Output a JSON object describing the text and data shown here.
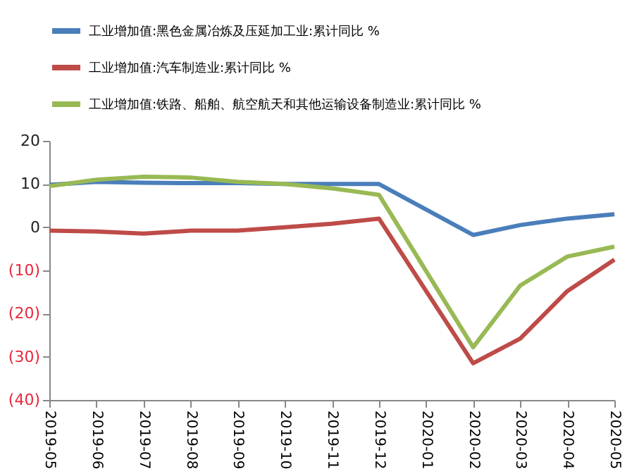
{
  "chart_data": {
    "type": "line",
    "categories": [
      "2019-05",
      "2019-06",
      "2019-07",
      "2019-08",
      "2019-09",
      "2019-10",
      "2019-11",
      "2019-12",
      "2020-01",
      "2020-02",
      "2020-03",
      "2020-04",
      "2020-05"
    ],
    "series": [
      {
        "name": "工业增加值:黑色金属冶炼及压延加工业:累计同比 %",
        "color": "#4a7ebb",
        "values": [
          9.8,
          10.5,
          10.3,
          10.2,
          10.2,
          10.0,
          10.0,
          10.0,
          null,
          -1.8,
          0.5,
          2.0,
          3.0
        ]
      },
      {
        "name": "工业增加值:汽车制造业:累计同比 %",
        "color": "#be4b48",
        "values": [
          -0.8,
          -1.0,
          -1.5,
          -0.8,
          -0.8,
          0.0,
          0.8,
          2.0,
          null,
          -31.5,
          -25.8,
          -14.8,
          -7.5
        ]
      },
      {
        "name": "工业增加值:铁路、船舶、航空航天和其他运输设备制造业:累计同比 %",
        "color": "#98b954",
        "values": [
          9.5,
          11.0,
          11.7,
          11.5,
          10.5,
          10.0,
          9.0,
          7.5,
          null,
          -27.8,
          -13.5,
          -6.8,
          -4.5
        ]
      }
    ],
    "ylim": [
      -40,
      20
    ],
    "yticks": [
      20,
      10,
      0,
      {
        "value": -10,
        "label": "(10)"
      },
      {
        "value": -20,
        "label": "(20)"
      },
      {
        "value": -30,
        "label": "(30)"
      },
      {
        "value": -40,
        "label": "(40)"
      }
    ],
    "grid": false,
    "legend": "top",
    "marker": "none",
    "line_style": "solid"
  }
}
